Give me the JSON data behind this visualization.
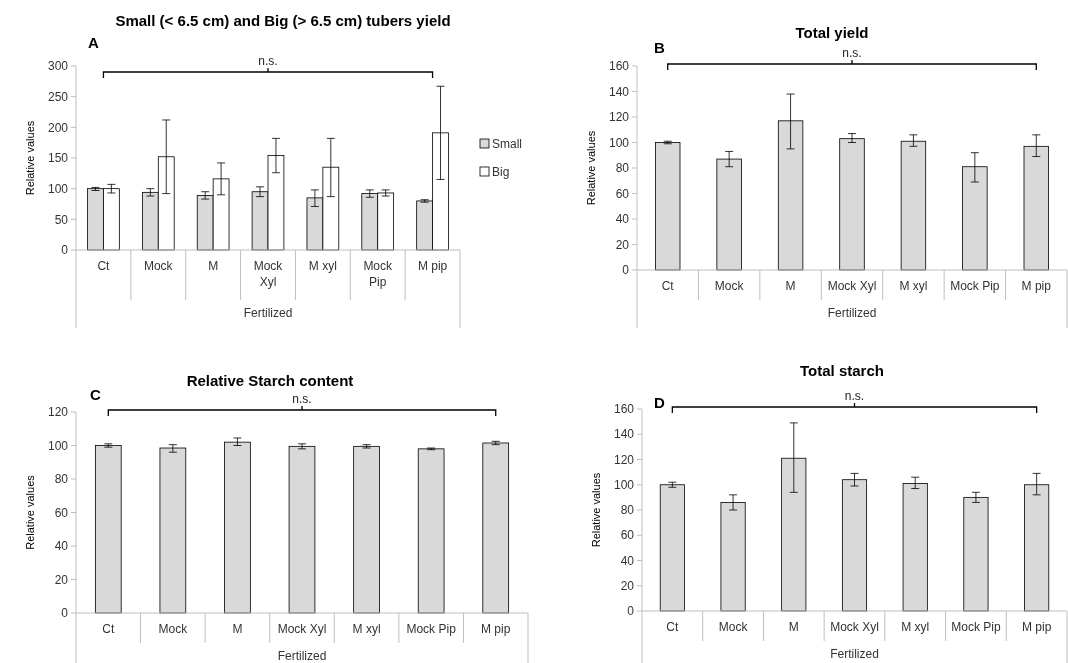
{
  "chart_data": [
    {
      "type": "bar",
      "title": "Small (< 6.5 cm) and Big (> 6.5 cm) tubers yield",
      "xlabel": "Fertilized",
      "ylabel": "Relative values",
      "annotations": [
        "A",
        "n.s."
      ],
      "categories": [
        "Ct",
        "Mock",
        "M",
        "Mock Xyl",
        "M xyl",
        "Mock Pip",
        "M pip"
      ],
      "ylim": [
        0,
        300
      ],
      "yticks": [
        0,
        50,
        100,
        150,
        200,
        250,
        300
      ],
      "legend": "right",
      "series": [
        {
          "name": "Small",
          "color": "#d9d9d9",
          "values": [
            100,
            94,
            89,
            95,
            85,
            92,
            80
          ],
          "errors": [
            [
              97,
              102
            ],
            [
              88,
              100
            ],
            [
              83,
              95
            ],
            [
              87,
              103
            ],
            [
              71,
              98
            ],
            [
              86,
              98
            ],
            [
              78,
              82
            ]
          ]
        },
        {
          "name": "Big",
          "color": "#ffffff",
          "values": [
            100,
            152,
            116,
            154,
            135,
            93,
            191
          ],
          "errors": [
            [
              93,
              107
            ],
            [
              92,
              212
            ],
            [
              90,
              142
            ],
            [
              126,
              182
            ],
            [
              87,
              182
            ],
            [
              88,
              98
            ],
            [
              115,
              267
            ]
          ]
        }
      ]
    },
    {
      "type": "bar",
      "title": "Total yield",
      "xlabel": "Fertilized",
      "ylabel": "Relative values",
      "annotations": [
        "B",
        "n.s."
      ],
      "categories": [
        "Ct",
        "Mock",
        "M",
        "Mock Xyl",
        "M xyl",
        "Mock Pip",
        "M pip"
      ],
      "ylim": [
        0,
        160
      ],
      "yticks": [
        0,
        20,
        40,
        60,
        80,
        100,
        120,
        140,
        160
      ],
      "series": [
        {
          "color": "#d9d9d9",
          "values": [
            100,
            87,
            117,
            103,
            101,
            81,
            97
          ],
          "errors": [
            [
              99,
              101
            ],
            [
              81,
              93
            ],
            [
              95,
              138
            ],
            [
              100,
              107
            ],
            [
              97,
              106
            ],
            [
              69,
              92
            ],
            [
              89,
              106
            ]
          ]
        }
      ]
    },
    {
      "type": "bar",
      "title": "Relative Starch content",
      "xlabel": "Fertilized",
      "ylabel": "Relative values",
      "annotations": [
        "C",
        "n.s."
      ],
      "categories": [
        "Ct",
        "Mock",
        "M",
        "Mock Xyl",
        "M xyl",
        "Mock Pip",
        "M pip"
      ],
      "ylim": [
        0,
        120
      ],
      "yticks": [
        0,
        20,
        40,
        60,
        80,
        100,
        120
      ],
      "series": [
        {
          "color": "#d9d9d9",
          "values": [
            100,
            98.5,
            102,
            99.5,
            99.5,
            98,
            101.5
          ],
          "errors": [
            [
              99,
              101
            ],
            [
              96,
              100.5
            ],
            [
              100,
              104.5
            ],
            [
              98,
              101
            ],
            [
              98.5,
              100.5
            ],
            [
              97.5,
              98.5
            ],
            [
              100.5,
              102.5
            ]
          ]
        }
      ]
    },
    {
      "type": "bar",
      "title": "Total starch",
      "xlabel": "Fertilized",
      "ylabel": "Relative values",
      "annotations": [
        "D",
        "n.s."
      ],
      "categories": [
        "Ct",
        "Mock",
        "M",
        "Mock Xyl",
        "M xyl",
        "Mock Pip",
        "M pip"
      ],
      "ylim": [
        0,
        160
      ],
      "yticks": [
        0,
        20,
        40,
        60,
        80,
        100,
        120,
        140,
        160
      ],
      "series": [
        {
          "color": "#d9d9d9",
          "values": [
            100,
            86,
            121,
            104,
            101,
            90,
            100
          ],
          "errors": [
            [
              98,
              102
            ],
            [
              80,
              92
            ],
            [
              94,
              149
            ],
            [
              99,
              109
            ],
            [
              97,
              106
            ],
            [
              86,
              94
            ],
            [
              92,
              109
            ]
          ]
        }
      ]
    }
  ]
}
